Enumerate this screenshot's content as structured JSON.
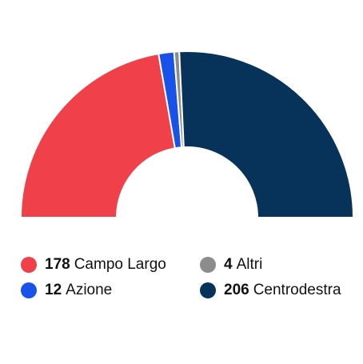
{
  "chart_data": {
    "type": "parliament-half-donut",
    "series": [
      {
        "name": "Campo Largo",
        "value": 178,
        "color": "#f0404a"
      },
      {
        "name": "Azione",
        "value": 12,
        "color": "#1852e8"
      },
      {
        "name": "Altri",
        "value": 4,
        "color": "#8c8c8c"
      },
      {
        "name": "Centrodestra",
        "value": 206,
        "color": "#07325a"
      }
    ],
    "total": 400,
    "legend_order": [
      "Campo Largo",
      "Altri",
      "Azione",
      "Centrodestra"
    ],
    "legend_placement": "bottom"
  }
}
